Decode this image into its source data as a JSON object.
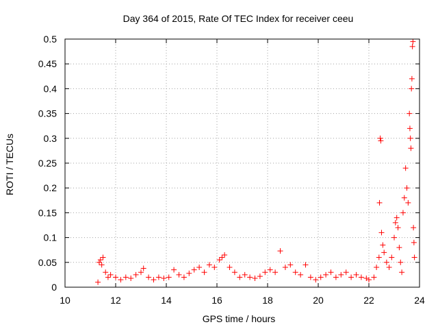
{
  "chart_data": {
    "type": "scatter",
    "title": "Day 364 of 2015, Rate Of TEC Index for receiver ceeu",
    "xlabel": "GPS time / hours",
    "ylabel": "ROTI / TECUs",
    "xlim": [
      10,
      24
    ],
    "ylim": [
      0,
      0.5
    ],
    "xticks": [
      10,
      12,
      14,
      16,
      18,
      20,
      22,
      24
    ],
    "yticks": [
      0,
      0.05,
      0.1,
      0.15,
      0.2,
      0.25,
      0.3,
      0.35,
      0.4,
      0.45,
      0.5
    ],
    "xtick_labels": [
      "10",
      "12",
      "14",
      "16",
      "18",
      "20",
      "22",
      "24"
    ],
    "ytick_labels": [
      "0",
      "0.05",
      "0.1",
      "0.15",
      "0.2",
      "0.25",
      "0.3",
      "0.35",
      "0.4",
      "0.45",
      "0.5"
    ],
    "grid": true,
    "marker": "+",
    "color": "#ff0000",
    "series": [
      {
        "name": "ROTI",
        "points": [
          [
            11.3,
            0.01
          ],
          [
            11.35,
            0.05
          ],
          [
            11.4,
            0.055
          ],
          [
            11.45,
            0.045
          ],
          [
            11.5,
            0.06
          ],
          [
            11.6,
            0.03
          ],
          [
            11.7,
            0.02
          ],
          [
            11.8,
            0.025
          ],
          [
            12.0,
            0.02
          ],
          [
            12.2,
            0.015
          ],
          [
            12.4,
            0.02
          ],
          [
            12.6,
            0.018
          ],
          [
            12.8,
            0.025
          ],
          [
            13.0,
            0.03
          ],
          [
            13.1,
            0.038
          ],
          [
            13.3,
            0.02
          ],
          [
            13.5,
            0.015
          ],
          [
            13.7,
            0.02
          ],
          [
            13.9,
            0.018
          ],
          [
            14.1,
            0.02
          ],
          [
            14.3,
            0.035
          ],
          [
            14.5,
            0.025
          ],
          [
            14.7,
            0.02
          ],
          [
            14.9,
            0.028
          ],
          [
            15.1,
            0.035
          ],
          [
            15.3,
            0.04
          ],
          [
            15.5,
            0.03
          ],
          [
            15.7,
            0.045
          ],
          [
            15.9,
            0.04
          ],
          [
            16.1,
            0.055
          ],
          [
            16.2,
            0.06
          ],
          [
            16.3,
            0.065
          ],
          [
            16.5,
            0.04
          ],
          [
            16.7,
            0.03
          ],
          [
            16.9,
            0.02
          ],
          [
            17.1,
            0.025
          ],
          [
            17.3,
            0.02
          ],
          [
            17.5,
            0.018
          ],
          [
            17.7,
            0.022
          ],
          [
            17.9,
            0.03
          ],
          [
            18.1,
            0.035
          ],
          [
            18.3,
            0.03
          ],
          [
            18.5,
            0.073
          ],
          [
            18.7,
            0.04
          ],
          [
            18.9,
            0.045
          ],
          [
            19.1,
            0.03
          ],
          [
            19.3,
            0.025
          ],
          [
            19.5,
            0.045
          ],
          [
            19.7,
            0.02
          ],
          [
            19.9,
            0.015
          ],
          [
            20.1,
            0.02
          ],
          [
            20.3,
            0.025
          ],
          [
            20.5,
            0.03
          ],
          [
            20.7,
            0.02
          ],
          [
            20.9,
            0.025
          ],
          [
            21.1,
            0.03
          ],
          [
            21.3,
            0.02
          ],
          [
            21.5,
            0.025
          ],
          [
            21.7,
            0.02
          ],
          [
            21.9,
            0.018
          ],
          [
            22.0,
            0.015
          ],
          [
            22.2,
            0.02
          ],
          [
            22.3,
            0.04
          ],
          [
            22.4,
            0.06
          ],
          [
            22.42,
            0.17
          ],
          [
            22.45,
            0.3
          ],
          [
            22.47,
            0.295
          ],
          [
            22.5,
            0.11
          ],
          [
            22.55,
            0.085
          ],
          [
            22.6,
            0.07
          ],
          [
            22.7,
            0.05
          ],
          [
            22.8,
            0.04
          ],
          [
            22.9,
            0.06
          ],
          [
            23.0,
            0.1
          ],
          [
            23.05,
            0.13
          ],
          [
            23.1,
            0.14
          ],
          [
            23.15,
            0.12
          ],
          [
            23.2,
            0.08
          ],
          [
            23.25,
            0.05
          ],
          [
            23.3,
            0.03
          ],
          [
            23.35,
            0.15
          ],
          [
            23.4,
            0.18
          ],
          [
            23.45,
            0.24
          ],
          [
            23.5,
            0.2
          ],
          [
            23.55,
            0.17
          ],
          [
            23.6,
            0.35
          ],
          [
            23.62,
            0.32
          ],
          [
            23.64,
            0.3
          ],
          [
            23.66,
            0.28
          ],
          [
            23.68,
            0.4
          ],
          [
            23.7,
            0.42
          ],
          [
            23.72,
            0.485
          ],
          [
            23.74,
            0.495
          ],
          [
            23.76,
            0.12
          ],
          [
            23.78,
            0.09
          ],
          [
            23.8,
            0.06
          ]
        ]
      }
    ]
  }
}
